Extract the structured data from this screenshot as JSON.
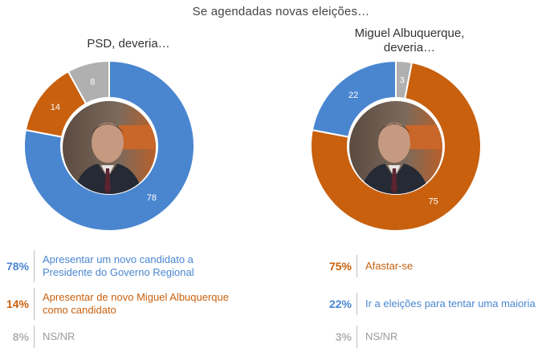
{
  "headline": "Se agendadas novas eleições…",
  "colors": {
    "blue": "#4a86d0",
    "orange": "#c8600e",
    "gray": "#b0b0b0"
  },
  "chart_data": [
    {
      "type": "pie",
      "title": "PSD, deveria…",
      "center_image": "portrait-photo",
      "slices": [
        {
          "label": "Apresentar um novo candidato a Presidente do Governo Regional",
          "value": 78,
          "color": "#4a86d0"
        },
        {
          "label": "Apresentar de novo Miguel Albuquerque como candidato",
          "value": 14,
          "color": "#c8600e"
        },
        {
          "label": "NS/NR",
          "value": 8,
          "color": "#b0b0b0"
        }
      ]
    },
    {
      "type": "pie",
      "title": "Miguel Albuquerque, deveria…",
      "center_image": "portrait-photo",
      "slices": [
        {
          "label": "Afastar-se",
          "value": 75,
          "color": "#c8600e"
        },
        {
          "label": "Ir a eleições para tentar uma maioria",
          "value": 22,
          "color": "#4a86d0"
        },
        {
          "label": "NS/NR",
          "value": 3,
          "color": "#b0b0b0"
        }
      ]
    }
  ],
  "legend_left": [
    {
      "pct": "78%",
      "text_1": "Apresentar um novo candidato a",
      "text_2": "Presidente do Governo Regional",
      "color": "#4a86d0"
    },
    {
      "pct": "14%",
      "text_1": "Apresentar de novo Miguel Albuquerque",
      "text_2": "como candidato",
      "color": "#c8600e"
    },
    {
      "pct": "8%",
      "text_1": "NS/NR",
      "text_2": "",
      "color": "#b0b0b0"
    }
  ],
  "legend_right": [
    {
      "pct": "75%",
      "text_1": "Afastar-se",
      "color": "#c8600e"
    },
    {
      "pct": "22%",
      "text_1": "Ir a eleições para tentar uma maioria",
      "color": "#4a86d0"
    },
    {
      "pct": "3%",
      "text_1": "NS/NR",
      "color": "#b0b0b0"
    }
  ]
}
